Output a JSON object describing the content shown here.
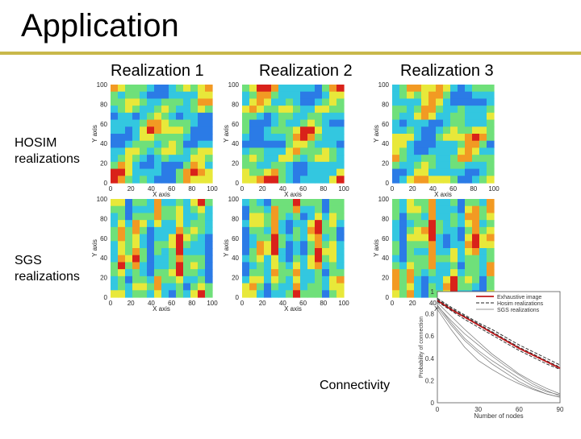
{
  "slide": {
    "title": "Application",
    "accent_color": "#c9b84b"
  },
  "columns": [
    "Realization 1",
    "Realization 2",
    "Realization 3"
  ],
  "rows": [
    {
      "label_line1": "HOSIM",
      "label_line2": "realizations"
    },
    {
      "label_line1": "SGS",
      "label_line2": "realizations"
    }
  ],
  "map_axes": {
    "x_label": "X axis",
    "y_label": "Y axis",
    "x_ticks": [
      "0",
      "20",
      "40",
      "60",
      "80",
      "100"
    ],
    "y_ticks": [
      "0",
      "20",
      "40",
      "60",
      "80",
      "100"
    ]
  },
  "connectivity": {
    "label": "Connectivity"
  },
  "chart_data": {
    "type": "line",
    "title": "",
    "xlabel": "Number of nodes",
    "ylabel": "Probability of connection",
    "xlim": [
      0,
      90
    ],
    "ylim": [
      0,
      1
    ],
    "x_ticks": [
      "0",
      "30",
      "60",
      "90"
    ],
    "y_ticks": [
      "0",
      "0.2",
      "0.4",
      "0.6",
      "0.8",
      "1"
    ],
    "legend": [
      "Exhaustive image",
      "Hosim realizations",
      "SGS realizations"
    ],
    "legend_position": "top-right",
    "x": [
      0,
      10,
      20,
      30,
      40,
      50,
      60,
      70,
      80,
      90
    ],
    "series": [
      {
        "name": "Exhaustive image",
        "style": "solid-red",
        "values": [
          0.92,
          0.84,
          0.77,
          0.7,
          0.63,
          0.56,
          0.49,
          0.43,
          0.37,
          0.31
        ]
      },
      {
        "name": "Hosim realizations",
        "style": "dashed",
        "values": [
          0.93,
          0.85,
          0.78,
          0.71,
          0.64,
          0.57,
          0.5,
          0.44,
          0.38,
          0.32
        ]
      },
      {
        "name": "Hosim realizations",
        "style": "dashed",
        "values": [
          0.91,
          0.83,
          0.75,
          0.68,
          0.61,
          0.54,
          0.47,
          0.41,
          0.35,
          0.3
        ]
      },
      {
        "name": "Hosim realizations",
        "style": "dashed",
        "values": [
          0.94,
          0.86,
          0.79,
          0.72,
          0.66,
          0.59,
          0.52,
          0.46,
          0.4,
          0.34
        ]
      },
      {
        "name": "SGS realizations",
        "style": "thin",
        "values": [
          0.88,
          0.72,
          0.58,
          0.47,
          0.38,
          0.3,
          0.22,
          0.15,
          0.1,
          0.07
        ]
      },
      {
        "name": "SGS realizations",
        "style": "thin",
        "values": [
          0.86,
          0.7,
          0.56,
          0.45,
          0.35,
          0.27,
          0.19,
          0.13,
          0.08,
          0.05
        ]
      },
      {
        "name": "SGS realizations",
        "style": "thin",
        "values": [
          0.9,
          0.78,
          0.66,
          0.55,
          0.44,
          0.35,
          0.26,
          0.19,
          0.13,
          0.08
        ]
      },
      {
        "name": "SGS realizations",
        "style": "thin",
        "values": [
          0.84,
          0.66,
          0.5,
          0.38,
          0.3,
          0.23,
          0.17,
          0.12,
          0.08,
          0.05
        ]
      },
      {
        "name": "SGS realizations",
        "style": "thin",
        "values": [
          0.87,
          0.74,
          0.62,
          0.52,
          0.42,
          0.33,
          0.25,
          0.17,
          0.11,
          0.06
        ]
      }
    ]
  }
}
